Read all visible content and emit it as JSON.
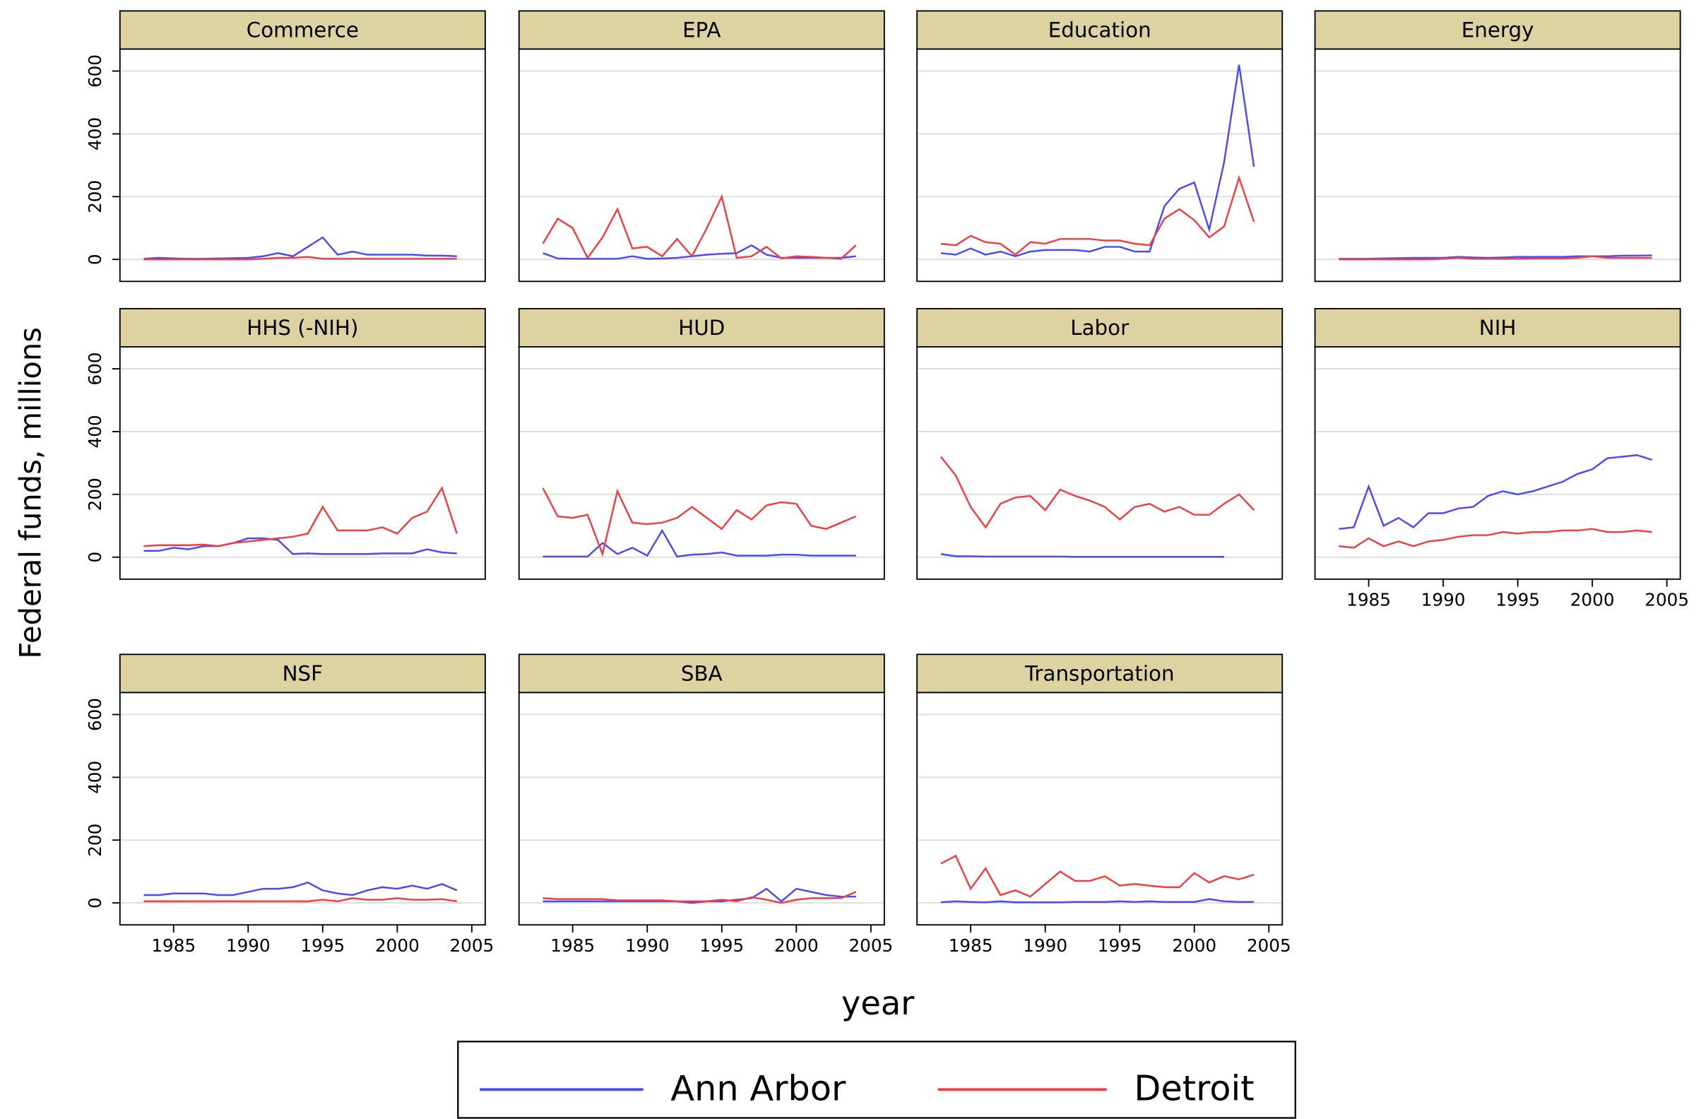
{
  "y_label": "Federal funds, millions",
  "x_label": "year",
  "chart_data": [
    {
      "type": "line",
      "title": "Commerce",
      "ylim": [
        -70,
        670
      ],
      "yticks": [
        0,
        200,
        400,
        600
      ],
      "xlim": [
        1981.4,
        2005.9
      ],
      "grid": true,
      "x": [
        1983,
        1984,
        1985,
        1986,
        1987,
        1988,
        1989,
        1990,
        1991,
        1992,
        1993,
        1994,
        1995,
        1996,
        1997,
        1998,
        1999,
        2000,
        2001,
        2002,
        2003,
        2004
      ],
      "series": [
        {
          "name": "Ann Arbor",
          "color": "#4b4bf5",
          "values": [
            2,
            5,
            3,
            2,
            2,
            3,
            4,
            5,
            10,
            20,
            10,
            40,
            70,
            15,
            25,
            15,
            15,
            15,
            15,
            12,
            12,
            10
          ]
        },
        {
          "name": "Detroit",
          "color": "#ee4040",
          "values": [
            0,
            0,
            0,
            0,
            0,
            0,
            0,
            0,
            2,
            5,
            5,
            8,
            2,
            2,
            2,
            2,
            2,
            2,
            2,
            2,
            2,
            2
          ]
        }
      ]
    },
    {
      "type": "line",
      "title": "EPA",
      "ylim": [
        -70,
        670
      ],
      "yticks": [
        0,
        200,
        400,
        600
      ],
      "xlim": [
        1981.4,
        2005.9
      ],
      "grid": true,
      "x": [
        1983,
        1984,
        1985,
        1986,
        1987,
        1988,
        1989,
        1990,
        1991,
        1992,
        1993,
        1994,
        1995,
        1996,
        1997,
        1998,
        1999,
        2000,
        2001,
        2002,
        2003,
        2004
      ],
      "series": [
        {
          "name": "Ann Arbor",
          "color": "#4b4bf5",
          "values": [
            20,
            3,
            2,
            2,
            2,
            2,
            10,
            2,
            3,
            5,
            10,
            15,
            18,
            20,
            45,
            15,
            5,
            5,
            5,
            5,
            5,
            10
          ]
        },
        {
          "name": "Detroit",
          "color": "#ee4040",
          "values": [
            50,
            130,
            100,
            5,
            70,
            160,
            35,
            40,
            10,
            65,
            10,
            100,
            200,
            5,
            10,
            40,
            3,
            10,
            8,
            5,
            2,
            45
          ]
        }
      ]
    },
    {
      "type": "line",
      "title": "Education",
      "ylim": [
        -70,
        670
      ],
      "yticks": [
        0,
        200,
        400,
        600
      ],
      "xlim": [
        1981.4,
        2005.9
      ],
      "grid": true,
      "x": [
        1983,
        1984,
        1985,
        1986,
        1987,
        1988,
        1989,
        1990,
        1991,
        1992,
        1993,
        1994,
        1995,
        1996,
        1997,
        1998,
        1999,
        2000,
        2001,
        2002,
        2003,
        2004
      ],
      "series": [
        {
          "name": "Ann Arbor",
          "color": "#4b4bf5",
          "values": [
            20,
            15,
            35,
            15,
            25,
            10,
            25,
            30,
            30,
            30,
            25,
            40,
            40,
            25,
            25,
            170,
            225,
            245,
            95,
            310,
            620,
            295
          ]
        },
        {
          "name": "Detroit",
          "color": "#ee4040",
          "values": [
            50,
            45,
            75,
            55,
            50,
            15,
            55,
            50,
            65,
            65,
            65,
            60,
            60,
            50,
            45,
            130,
            160,
            125,
            70,
            105,
            260,
            120
          ]
        }
      ]
    },
    {
      "type": "line",
      "title": "Energy",
      "ylim": [
        -70,
        670
      ],
      "yticks": [
        0,
        200,
        400,
        600
      ],
      "xlim": [
        1981.4,
        2005.9
      ],
      "grid": true,
      "x": [
        1983,
        1984,
        1985,
        1986,
        1987,
        1988,
        1989,
        1990,
        1991,
        1992,
        1993,
        1994,
        1995,
        1996,
        1997,
        1998,
        1999,
        2000,
        2001,
        2002,
        2003,
        2004
      ],
      "series": [
        {
          "name": "Ann Arbor",
          "color": "#4b4bf5",
          "values": [
            2,
            2,
            2,
            3,
            4,
            5,
            5,
            5,
            8,
            6,
            5,
            6,
            8,
            8,
            8,
            8,
            10,
            10,
            10,
            12,
            12,
            13
          ]
        },
        {
          "name": "Detroit",
          "color": "#ee4040",
          "values": [
            0,
            0,
            0,
            0,
            0,
            0,
            0,
            2,
            5,
            2,
            2,
            2,
            2,
            3,
            3,
            3,
            5,
            10,
            5,
            5,
            5,
            5
          ]
        }
      ]
    },
    {
      "type": "line",
      "title": "HHS (-NIH)",
      "ylim": [
        -70,
        670
      ],
      "yticks": [
        0,
        200,
        400,
        600
      ],
      "xlim": [
        1981.4,
        2005.9
      ],
      "grid": true,
      "x": [
        1983,
        1984,
        1985,
        1986,
        1987,
        1988,
        1989,
        1990,
        1991,
        1992,
        1993,
        1994,
        1995,
        1996,
        1997,
        1998,
        1999,
        2000,
        2001,
        2002,
        2003,
        2004
      ],
      "series": [
        {
          "name": "Ann Arbor",
          "color": "#4b4bf5",
          "values": [
            20,
            20,
            30,
            25,
            35,
            35,
            45,
            60,
            60,
            55,
            10,
            12,
            10,
            10,
            10,
            10,
            12,
            12,
            12,
            25,
            15,
            12
          ]
        },
        {
          "name": "Detroit",
          "color": "#ee4040",
          "values": [
            35,
            38,
            38,
            38,
            40,
            35,
            45,
            50,
            55,
            60,
            65,
            75,
            160,
            85,
            85,
            85,
            95,
            75,
            125,
            145,
            220,
            75
          ]
        }
      ]
    },
    {
      "type": "line",
      "title": "HUD",
      "ylim": [
        -70,
        670
      ],
      "yticks": [
        0,
        200,
        400,
        600
      ],
      "xlim": [
        1981.4,
        2005.9
      ],
      "grid": true,
      "x": [
        1983,
        1984,
        1985,
        1986,
        1987,
        1988,
        1989,
        1990,
        1991,
        1992,
        1993,
        1994,
        1995,
        1996,
        1997,
        1998,
        1999,
        2000,
        2001,
        2002,
        2003,
        2004
      ],
      "series": [
        {
          "name": "Ann Arbor",
          "color": "#4b4bf5",
          "values": [
            2,
            2,
            2,
            2,
            45,
            10,
            30,
            5,
            85,
            2,
            8,
            10,
            15,
            5,
            5,
            5,
            8,
            8,
            5,
            5,
            5,
            5
          ]
        },
        {
          "name": "Detroit",
          "color": "#ee4040",
          "values": [
            220,
            130,
            125,
            135,
            10,
            210,
            110,
            105,
            110,
            125,
            160,
            125,
            90,
            150,
            120,
            165,
            175,
            170,
            100,
            90,
            110,
            130
          ]
        }
      ]
    },
    {
      "type": "line",
      "title": "Labor",
      "ylim": [
        -70,
        670
      ],
      "yticks": [
        0,
        200,
        400,
        600
      ],
      "xlim": [
        1981.4,
        2005.9
      ],
      "grid": true,
      "x": [
        1983,
        1984,
        1985,
        1986,
        1987,
        1988,
        1989,
        1990,
        1991,
        1992,
        1993,
        1994,
        1995,
        1996,
        1997,
        1998,
        1999,
        2000,
        2001,
        2002,
        2003,
        2004
      ],
      "series": [
        {
          "name": "Ann Arbor",
          "color": "#4b4bf5",
          "values": [
            10,
            3,
            3,
            2,
            2,
            2,
            2,
            2,
            2,
            1,
            1,
            1,
            1,
            1,
            1,
            1,
            1,
            1,
            1,
            1,
            null,
            null
          ]
        },
        {
          "name": "Detroit",
          "color": "#ee4040",
          "values": [
            320,
            260,
            160,
            95,
            170,
            190,
            195,
            150,
            215,
            195,
            180,
            160,
            120,
            160,
            170,
            145,
            160,
            135,
            135,
            170,
            200,
            150
          ]
        }
      ]
    },
    {
      "type": "line",
      "title": "NIH",
      "ylim": [
        -70,
        670
      ],
      "yticks": [
        0,
        200,
        400,
        600
      ],
      "xlim": [
        1981.4,
        2005.9
      ],
      "xticks": [
        1985,
        1990,
        1995,
        2000,
        2005
      ],
      "grid": true,
      "x": [
        1983,
        1984,
        1985,
        1986,
        1987,
        1988,
        1989,
        1990,
        1991,
        1992,
        1993,
        1994,
        1995,
        1996,
        1997,
        1998,
        1999,
        2000,
        2001,
        2002,
        2003,
        2004
      ],
      "series": [
        {
          "name": "Ann Arbor",
          "color": "#4b4bf5",
          "values": [
            90,
            95,
            225,
            100,
            125,
            95,
            140,
            140,
            155,
            160,
            195,
            210,
            200,
            210,
            225,
            240,
            265,
            280,
            315,
            320,
            325,
            310
          ]
        },
        {
          "name": "Detroit",
          "color": "#ee4040",
          "values": [
            35,
            30,
            60,
            35,
            50,
            35,
            50,
            55,
            65,
            70,
            70,
            80,
            75,
            80,
            80,
            85,
            85,
            90,
            80,
            80,
            85,
            80
          ]
        }
      ]
    },
    {
      "type": "line",
      "title": "NSF",
      "ylim": [
        -70,
        670
      ],
      "yticks": [
        0,
        200,
        400,
        600
      ],
      "xlim": [
        1981.4,
        2005.9
      ],
      "xticks": [
        1985,
        1990,
        1995,
        2000,
        2005
      ],
      "grid": true,
      "x": [
        1983,
        1984,
        1985,
        1986,
        1987,
        1988,
        1989,
        1990,
        1991,
        1992,
        1993,
        1994,
        1995,
        1996,
        1997,
        1998,
        1999,
        2000,
        2001,
        2002,
        2003,
        2004
      ],
      "series": [
        {
          "name": "Ann Arbor",
          "color": "#4b4bf5",
          "values": [
            25,
            25,
            30,
            30,
            30,
            25,
            25,
            35,
            45,
            45,
            50,
            65,
            40,
            30,
            25,
            40,
            50,
            45,
            55,
            45,
            60,
            40
          ]
        },
        {
          "name": "Detroit",
          "color": "#ee4040",
          "values": [
            5,
            5,
            5,
            5,
            5,
            5,
            5,
            5,
            5,
            5,
            5,
            5,
            10,
            5,
            15,
            10,
            10,
            15,
            10,
            10,
            12,
            5
          ]
        }
      ]
    },
    {
      "type": "line",
      "title": "SBA",
      "ylim": [
        -70,
        670
      ],
      "yticks": [
        0,
        200,
        400,
        600
      ],
      "xlim": [
        1981.4,
        2005.9
      ],
      "xticks": [
        1985,
        1990,
        1995,
        2000,
        2005
      ],
      "grid": true,
      "x": [
        1983,
        1984,
        1985,
        1986,
        1987,
        1988,
        1989,
        1990,
        1991,
        1992,
        1993,
        1994,
        1995,
        1996,
        1997,
        1998,
        1999,
        2000,
        2001,
        2002,
        2003,
        2004
      ],
      "series": [
        {
          "name": "Ann Arbor",
          "color": "#4b4bf5",
          "values": [
            5,
            5,
            5,
            5,
            5,
            5,
            5,
            5,
            5,
            5,
            0,
            5,
            5,
            10,
            15,
            45,
            5,
            45,
            35,
            25,
            20,
            20
          ]
        },
        {
          "name": "Detroit",
          "color": "#ee4040",
          "values": [
            15,
            12,
            12,
            12,
            12,
            8,
            8,
            8,
            8,
            5,
            5,
            5,
            10,
            5,
            18,
            10,
            0,
            10,
            15,
            15,
            15,
            35
          ]
        }
      ]
    },
    {
      "type": "line",
      "title": "Transportation",
      "ylim": [
        -70,
        670
      ],
      "yticks": [
        0,
        200,
        400,
        600
      ],
      "xlim": [
        1981.4,
        2005.9
      ],
      "xticks": [
        1985,
        1990,
        1995,
        2000,
        2005
      ],
      "grid": true,
      "x": [
        1983,
        1984,
        1985,
        1986,
        1987,
        1988,
        1989,
        1990,
        1991,
        1992,
        1993,
        1994,
        1995,
        1996,
        1997,
        1998,
        1999,
        2000,
        2001,
        2002,
        2003,
        2004
      ],
      "series": [
        {
          "name": "Ann Arbor",
          "color": "#4b4bf5",
          "values": [
            2,
            5,
            3,
            2,
            5,
            2,
            2,
            2,
            2,
            3,
            3,
            3,
            5,
            3,
            5,
            3,
            3,
            3,
            12,
            5,
            3,
            3
          ]
        },
        {
          "name": "Detroit",
          "color": "#ee4040",
          "values": [
            125,
            150,
            45,
            110,
            25,
            40,
            20,
            60,
            100,
            70,
            70,
            85,
            55,
            60,
            55,
            50,
            50,
            95,
            65,
            85,
            75,
            90
          ]
        }
      ]
    }
  ]
}
